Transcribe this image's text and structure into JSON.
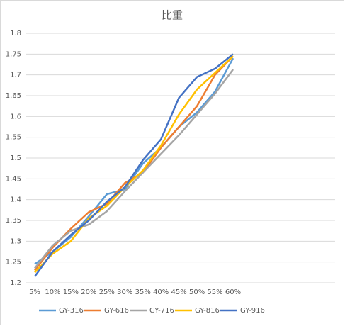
{
  "chart_data": {
    "type": "line",
    "title": "比重",
    "categories": [
      "5%",
      "10%",
      "15%",
      "20%",
      "25%",
      "30%",
      "35%",
      "40%",
      "45%",
      "50%",
      "55%",
      "60%"
    ],
    "series": [
      {
        "name": "GY-316",
        "color": "#5b9bd5",
        "values": [
          1.245,
          1.275,
          1.31,
          1.36,
          1.413,
          1.425,
          1.487,
          1.525,
          1.575,
          1.61,
          1.66,
          1.74
        ]
      },
      {
        "name": "GY-616",
        "color": "#ed7d31",
        "values": [
          1.23,
          1.285,
          1.33,
          1.37,
          1.39,
          1.44,
          1.465,
          1.525,
          1.575,
          1.625,
          1.7,
          1.745
        ]
      },
      {
        "name": "GY-716",
        "color": "#a5a5a5",
        "values": [
          1.235,
          1.29,
          1.325,
          1.34,
          1.372,
          1.42,
          1.465,
          1.51,
          1.555,
          1.605,
          1.655,
          1.713
        ]
      },
      {
        "name": "GY-816",
        "color": "#ffc000",
        "values": [
          1.225,
          1.27,
          1.3,
          1.355,
          1.385,
          1.43,
          1.47,
          1.53,
          1.605,
          1.665,
          1.705,
          1.745
        ]
      },
      {
        "name": "GY-916",
        "color": "#4472c4",
        "values": [
          1.215,
          1.275,
          1.315,
          1.35,
          1.395,
          1.43,
          1.495,
          1.545,
          1.645,
          1.695,
          1.715,
          1.75
        ]
      }
    ],
    "ylim": [
      1.2,
      1.8
    ],
    "yticks": [
      1.2,
      1.25,
      1.3,
      1.35,
      1.4,
      1.45,
      1.5,
      1.55,
      1.6,
      1.65,
      1.7,
      1.75,
      1.8
    ],
    "grid": true,
    "legend": "bottom"
  }
}
